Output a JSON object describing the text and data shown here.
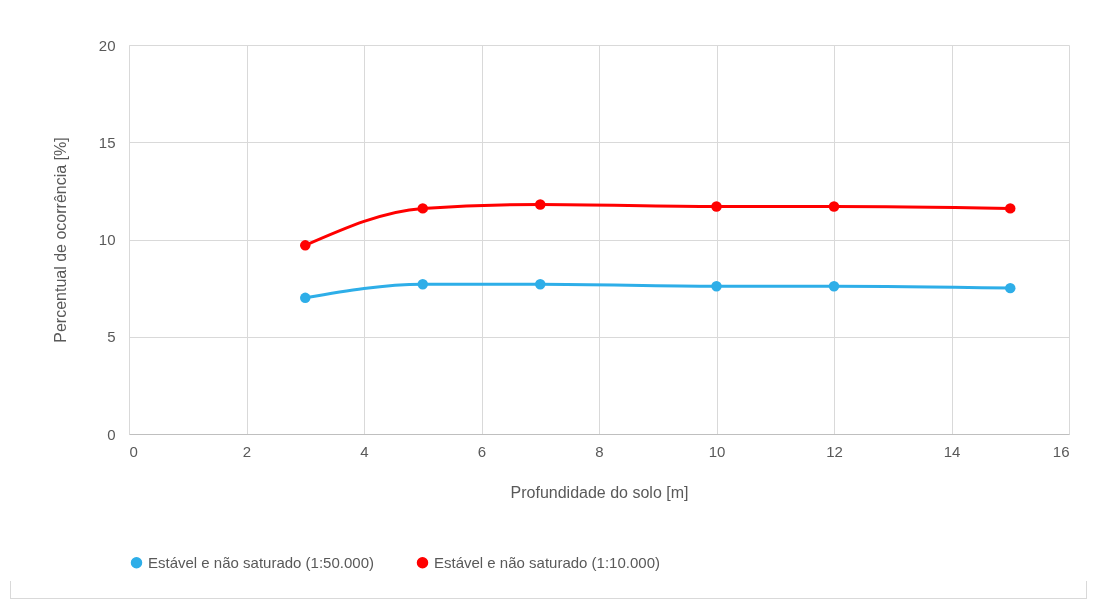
{
  "chart_data": {
    "type": "line",
    "xlabel": "Profundidade do solo [m]",
    "ylabel": "Percentual de ocorrência [%]",
    "x": [
      3,
      5,
      7,
      10,
      12,
      15
    ],
    "series": [
      {
        "name": "Estável e não saturado (1:50.000)",
        "color": "#2eaee8",
        "values": [
          7.0,
          7.7,
          7.7,
          7.6,
          7.6,
          7.5
        ]
      },
      {
        "name": "Estável e não saturado  (1:10.000)",
        "color": "#ff0000",
        "values": [
          9.7,
          11.6,
          11.8,
          11.7,
          11.7,
          11.6
        ]
      }
    ],
    "xlim": [
      0,
      16
    ],
    "xticks": [
      0,
      2,
      4,
      6,
      8,
      10,
      12,
      14,
      16
    ],
    "ylim": [
      0,
      20
    ],
    "yticks": [
      0,
      5,
      10,
      15,
      20
    ],
    "grid": true,
    "legend": "bottom",
    "marker": "circle",
    "line_style": "solid"
  }
}
